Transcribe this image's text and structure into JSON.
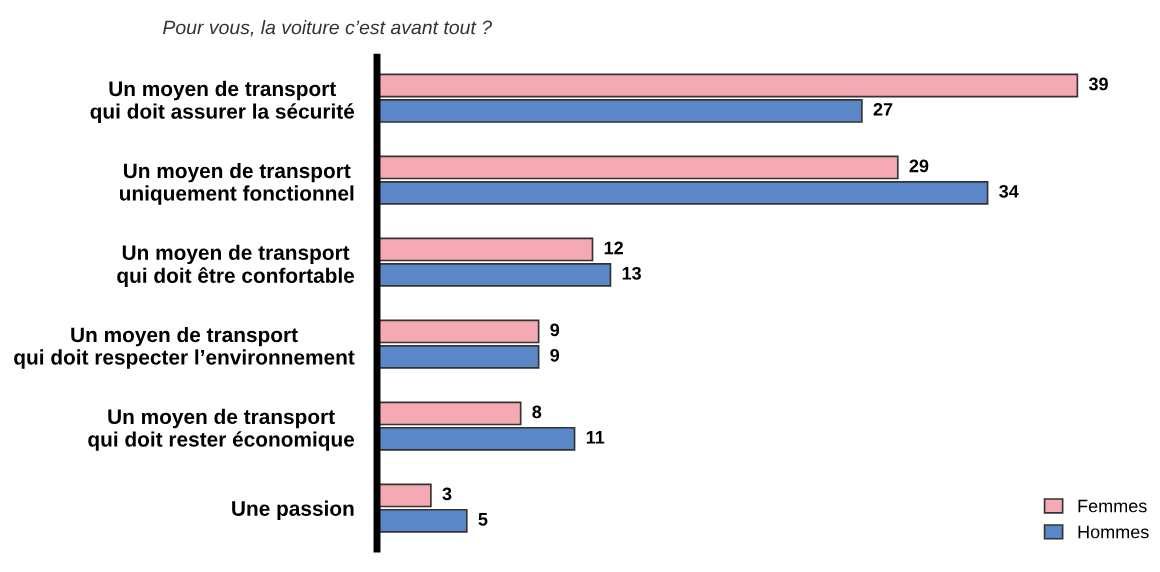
{
  "chart_data": {
    "type": "bar",
    "orientation": "horizontal",
    "title": "Pour vous, la voiture c’est avant tout ?",
    "categories": [
      "Un moyen de transport\nqui doit assurer la sécurité",
      "Un moyen de transport\nuniquement fonctionnel",
      "Un moyen de transport\nqui doit être confortable",
      "Un moyen de transport\nqui doit respecter l’environnement",
      "Un moyen de transport\nqui doit rester économique",
      "Une passion"
    ],
    "series": [
      {
        "name": "Femmes",
        "color": "#f4a9b3",
        "values": [
          39,
          29,
          12,
          9,
          8,
          3
        ]
      },
      {
        "name": "Hommes",
        "color": "#5b87c8",
        "values": [
          27,
          34,
          13,
          9,
          11,
          5
        ]
      }
    ],
    "data_labels": true,
    "legend": "bottom right",
    "grid": false
  }
}
